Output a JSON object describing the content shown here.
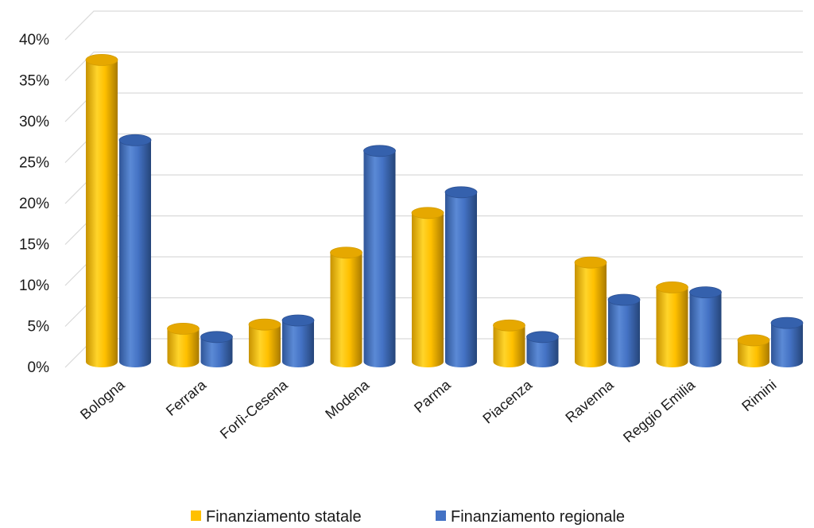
{
  "chart_data": {
    "type": "bar",
    "categories": [
      "Bologna",
      "Ferrara",
      "Forlì-Cesena",
      "Modena",
      "Parma",
      "Piacenza",
      "Ravenna",
      "Reggio Emilia",
      "Rimini"
    ],
    "series": [
      {
        "name": "Finanziamento statale",
        "values": [
          36.5,
          4.0,
          4.5,
          13.2,
          18.0,
          4.4,
          12.0,
          9.0,
          2.6
        ],
        "color": "#ffc000"
      },
      {
        "name": "Finanziamento regionale",
        "values": [
          26.8,
          3.0,
          5.0,
          25.5,
          20.5,
          3.0,
          7.5,
          8.4,
          4.7
        ],
        "color": "#4472c4"
      }
    ],
    "y_ticks": [
      "0%",
      "5%",
      "10%",
      "15%",
      "20%",
      "25%",
      "30%",
      "35%",
      "40%"
    ],
    "ylim": [
      0,
      40
    ],
    "grid": true,
    "legend_position": "bottom",
    "style": "3d-cylinder"
  }
}
